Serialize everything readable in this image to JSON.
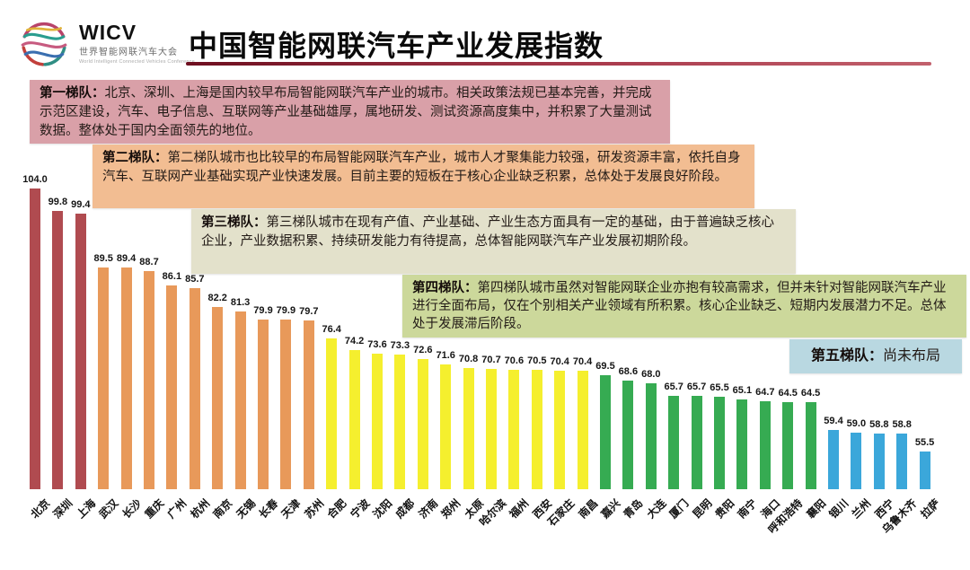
{
  "header": {
    "logo": {
      "acronym": "WICV",
      "name_cn": "世界智能网联汽车大会",
      "name_en": "World Intelligent Connected Vehicles Conference"
    },
    "title": "中国智能网联汽车产业发展指数",
    "underline_color": "#8b1a2b"
  },
  "tier_notes": [
    {
      "label": "第一梯队：",
      "text": "北京、深圳、上海是国内较早布局智能网联汽车产业的城市。相关政策法规已基本完善，并完成示范区建设，汽车、电子信息、互联网等产业基础雄厚，属地研发、测试资源高度集中，并积累了大量测试数据。整体处于国内全面领先的地位。",
      "bg": "#d9a0a8"
    },
    {
      "label": "第二梯队：",
      "text": "第二梯队城市也比较早的布局智能网联汽车产业，城市人才聚集能力较强，研发资源丰富，依托自身汽车、互联网产业基础实现产业快速发展。目前主要的短板在于核心企业缺乏积累，总体处于发展良好阶段。",
      "bg": "#f2bd92"
    },
    {
      "label": "第三梯队：",
      "text": "第三梯队城市在现有产值、产业基础、产业生态方面具有一定的基础，由于普遍缺乏核心企业，产业数据积累、持续研发能力有待提高，总体智能网联汽车产业发展初期阶段。",
      "bg": "#e3e1cb"
    },
    {
      "label": "第四梯队：",
      "text": "第四梯队城市虽然对智能网联企业亦抱有较高需求，但并未针对智能网联汽车产业进行全面布局，仅在个别相关产业领域有所积累。核心企业缺乏、短期内发展潜力不足。总体处于发展滞后阶段。",
      "bg": "#ccd89b"
    },
    {
      "label": "第五梯队：",
      "text": "尚未布局",
      "bg": "#b9d8e1"
    }
  ],
  "chart_data": {
    "type": "bar",
    "title": "中国智能网联汽车产业发展指数",
    "xlabel": "",
    "ylabel": "",
    "grid": false,
    "legend": false,
    "ylim": [
      48.5,
      106
    ],
    "value_label_decimals": 1,
    "categories": [
      "北京",
      "深圳",
      "上海",
      "武汉",
      "长沙",
      "重庆",
      "广州",
      "杭州",
      "南京",
      "无锡",
      "长春",
      "天津",
      "苏州",
      "合肥",
      "宁波",
      "沈阳",
      "成都",
      "济南",
      "郑州",
      "太原",
      "哈尔滨",
      "福州",
      "西安",
      "石家庄",
      "南昌",
      "嘉兴",
      "青岛",
      "大连",
      "厦门",
      "昆明",
      "贵阳",
      "南宁",
      "海口",
      "呼和浩特",
      "襄阳",
      "银川",
      "兰州",
      "西宁",
      "乌鲁木齐",
      "拉萨"
    ],
    "values": [
      104.0,
      99.8,
      99.4,
      89.5,
      89.4,
      88.7,
      86.1,
      85.7,
      82.2,
      81.3,
      79.9,
      79.9,
      79.7,
      76.4,
      74.2,
      73.6,
      73.3,
      72.6,
      71.6,
      70.8,
      70.7,
      70.6,
      70.5,
      70.4,
      70.4,
      69.5,
      68.6,
      68.0,
      65.7,
      65.7,
      65.5,
      65.1,
      64.7,
      64.5,
      64.5,
      59.4,
      59.0,
      58.8,
      58.8,
      55.5
    ],
    "tiers": [
      1,
      1,
      1,
      2,
      2,
      2,
      2,
      2,
      2,
      2,
      2,
      2,
      2,
      3,
      3,
      3,
      3,
      3,
      3,
      3,
      3,
      3,
      3,
      3,
      3,
      4,
      4,
      4,
      4,
      4,
      4,
      4,
      4,
      4,
      4,
      5,
      5,
      5,
      5,
      5
    ],
    "tier_colors": {
      "1": "#b04b50",
      "2": "#e8995a",
      "3": "#f5ef2e",
      "4": "#36ab52",
      "5": "#3ba7da"
    }
  }
}
